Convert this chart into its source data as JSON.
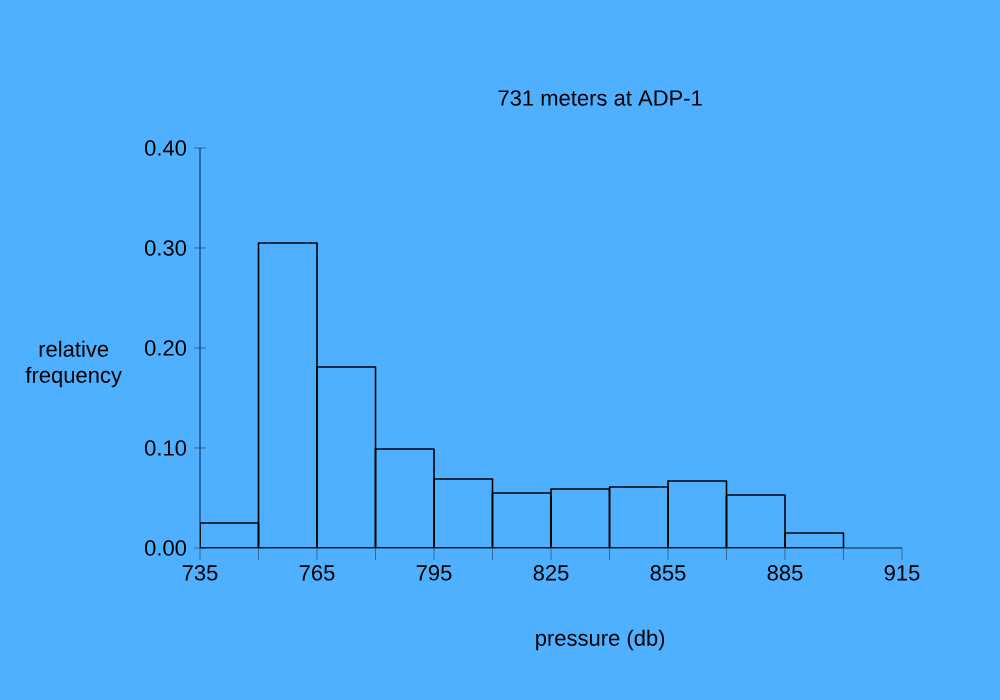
{
  "chart_data": {
    "type": "histogram",
    "title": "731 meters at ADP-1",
    "xlabel": "pressure (db)",
    "ylabel": "relative frequency",
    "bins": [
      735,
      750,
      765,
      780,
      795,
      810,
      825,
      840,
      855,
      870,
      885,
      900
    ],
    "values": [
      0.025,
      0.305,
      0.181,
      0.099,
      0.069,
      0.055,
      0.059,
      0.061,
      0.067,
      0.053,
      0.015
    ],
    "color": "#000000",
    "xlim": [
      735,
      915
    ],
    "ylim": [
      0,
      0.4
    ],
    "xticks": [
      735,
      {
        "value": 750,
        "label": null
      },
      765,
      {
        "value": 780,
        "label": null
      },
      795,
      {
        "value": 810,
        "label": null
      },
      825,
      {
        "value": 840,
        "label": null
      },
      855,
      {
        "value": 870,
        "label": null
      },
      885,
      {
        "value": 900,
        "label": null
      },
      915
    ],
    "yticks": [
      {
        "value": 0,
        "label": "0.00"
      },
      {
        "value": 0.1,
        "label": "0.10"
      },
      {
        "value": 0.2,
        "label": "0.20"
      },
      {
        "value": 0.3,
        "label": "0.30"
      },
      {
        "value": 0.4,
        "label": "0.40"
      }
    ],
    "grid": false
  }
}
